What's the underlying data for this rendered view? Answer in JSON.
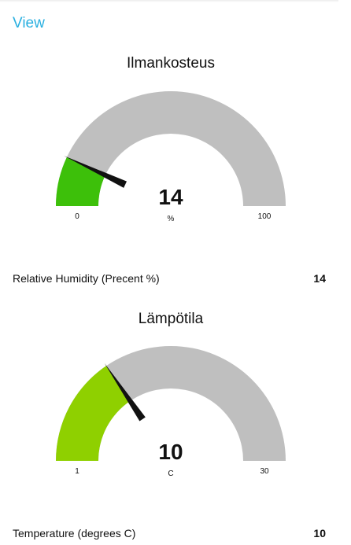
{
  "header": {
    "view_link": "View"
  },
  "gauges": [
    {
      "title": "Ilmankosteus",
      "value": 14,
      "value_text": "14",
      "unit": "%",
      "min": 0,
      "max": 100,
      "min_label": "0",
      "max_label": "100",
      "fill_color": "#3dc00a",
      "track_color": "#bfbfbf",
      "needle_color": "#111111",
      "reading_label": "Relative Humidity (Precent %)",
      "reading_value": "14"
    },
    {
      "title": "Lämpötila",
      "value": 10,
      "value_text": "10",
      "unit": "C",
      "min": 1,
      "max": 30,
      "min_label": "1",
      "max_label": "30",
      "fill_color": "#8fd000",
      "track_color": "#bfbfbf",
      "needle_color": "#111111",
      "reading_label": "Temperature (degrees C)",
      "reading_value": "10"
    }
  ]
}
